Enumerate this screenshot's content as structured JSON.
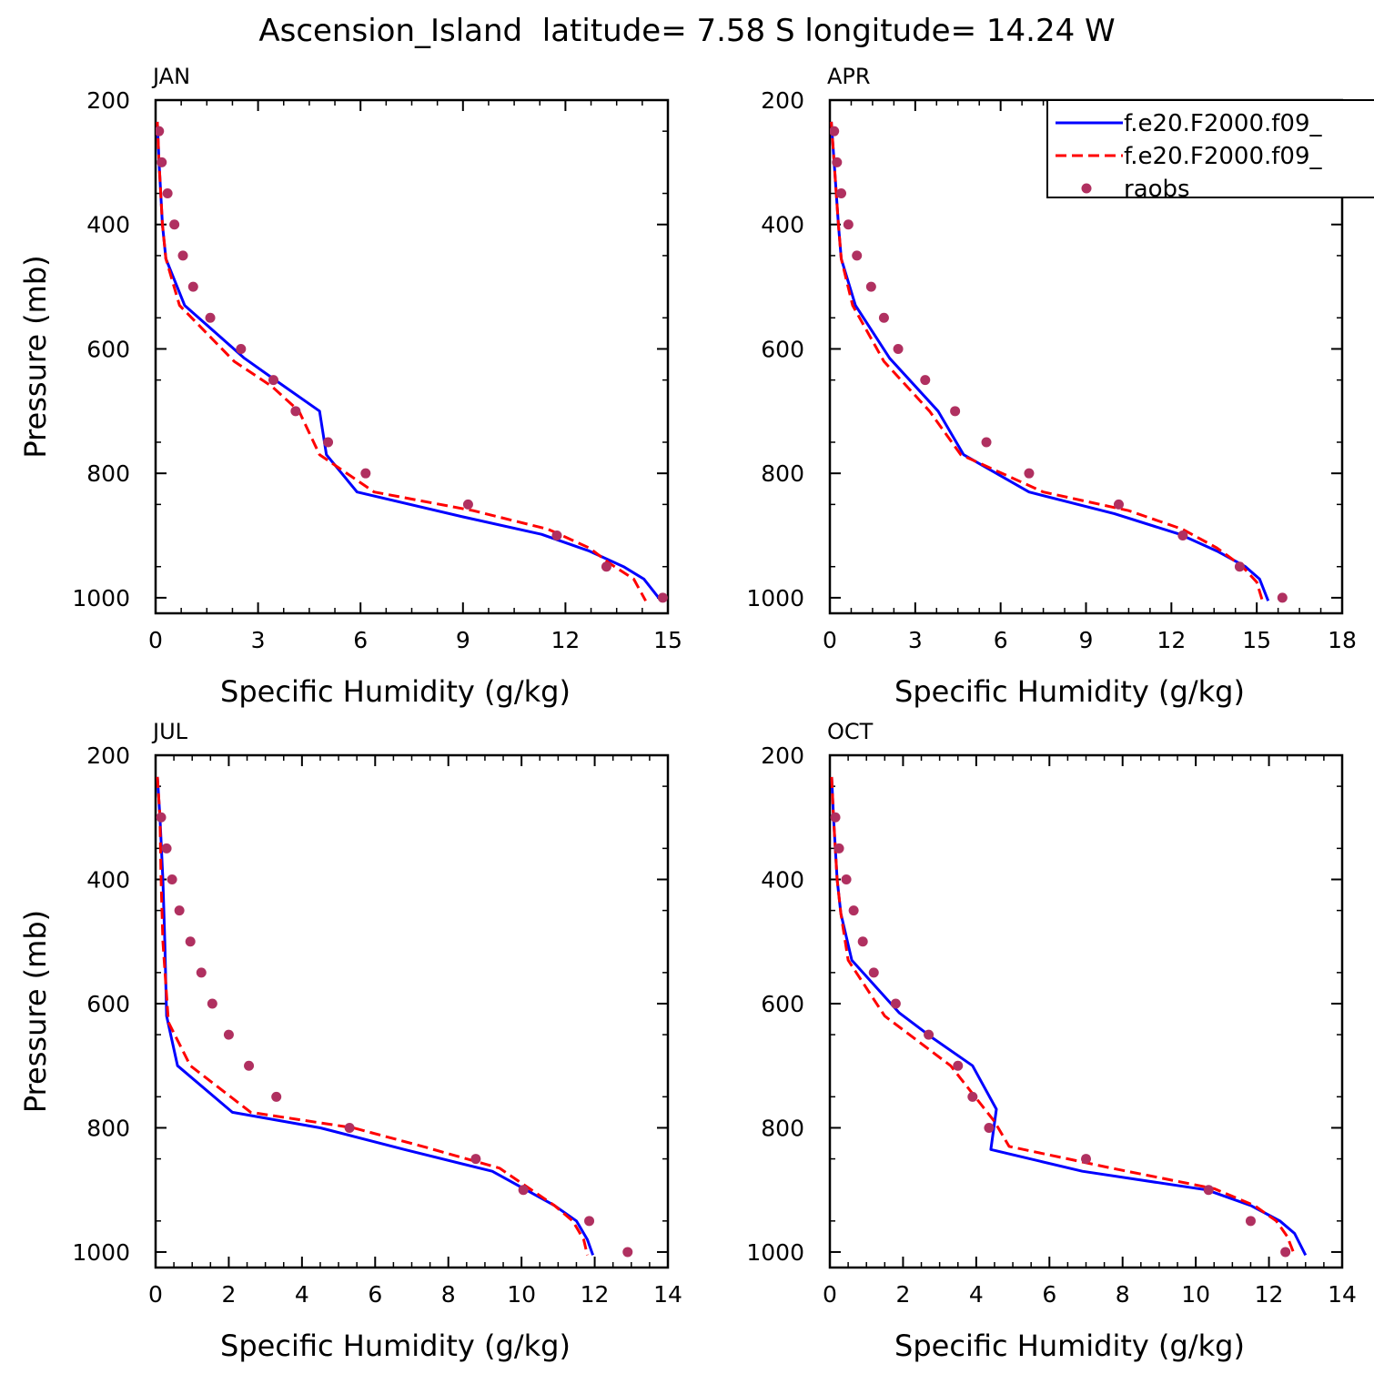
{
  "title": "Ascension_Island  latitude= 7.58 S longitude= 14.24 W",
  "colors": {
    "model1": "#0000ff",
    "model2": "#ff0000",
    "raobs": "#b03060"
  },
  "chart_data": [
    {
      "type": "line",
      "panel": "JAN",
      "xlabel": "Specific Humidity (g/kg)",
      "ylabel": "Pressure (mb)",
      "xlim": [
        0,
        15
      ],
      "xticks": [
        0,
        3,
        6,
        9,
        12,
        15
      ],
      "ylim": [
        200,
        1025
      ],
      "yticks": [
        200,
        400,
        600,
        800,
        1000
      ],
      "y_inverted": true,
      "series": [
        {
          "name": "f.e20.F2000.f09_",
          "style": "solid",
          "color": "#0000ff",
          "points": [
            [
              0.05,
              235
            ],
            [
              0.1,
              300
            ],
            [
              0.2,
              400
            ],
            [
              0.3,
              455
            ],
            [
              0.85,
              530
            ],
            [
              2.6,
              615
            ],
            [
              3.5,
              650
            ],
            [
              4.8,
              700
            ],
            [
              5.0,
              770
            ],
            [
              5.9,
              830
            ],
            [
              9.0,
              870
            ],
            [
              11.3,
              898
            ],
            [
              12.7,
              925
            ],
            [
              13.7,
              950
            ],
            [
              14.3,
              970
            ],
            [
              14.8,
              1005
            ]
          ]
        },
        {
          "name": "f.e20.F2000.f09_",
          "style": "dashed",
          "color": "#ff0000",
          "points": [
            [
              0.05,
              235
            ],
            [
              0.1,
              300
            ],
            [
              0.2,
              400
            ],
            [
              0.3,
              455
            ],
            [
              0.7,
              530
            ],
            [
              2.3,
              620
            ],
            [
              3.4,
              660
            ],
            [
              4.2,
              700
            ],
            [
              4.8,
              770
            ],
            [
              6.4,
              830
            ],
            [
              9.3,
              860
            ],
            [
              11.5,
              890
            ],
            [
              12.7,
              920
            ],
            [
              13.3,
              945
            ],
            [
              14.0,
              970
            ],
            [
              14.35,
              1005
            ]
          ]
        },
        {
          "name": "raobs",
          "style": "markers",
          "color": "#b03060",
          "points": [
            [
              0.1,
              250
            ],
            [
              0.18,
              300
            ],
            [
              0.35,
              350
            ],
            [
              0.55,
              400
            ],
            [
              0.8,
              450
            ],
            [
              1.1,
              500
            ],
            [
              1.6,
              550
            ],
            [
              2.5,
              600
            ],
            [
              3.45,
              650
            ],
            [
              4.1,
              700
            ],
            [
              5.05,
              750
            ],
            [
              6.15,
              800
            ],
            [
              9.15,
              850
            ],
            [
              11.75,
              900
            ],
            [
              13.2,
              950
            ],
            [
              14.85,
              1000
            ]
          ]
        }
      ]
    },
    {
      "type": "line",
      "panel": "APR",
      "xlabel": "Specific Humidity (g/kg)",
      "ylabel": "",
      "xlim": [
        0,
        18
      ],
      "xticks": [
        0,
        3,
        6,
        9,
        12,
        15,
        18
      ],
      "ylim": [
        200,
        1025
      ],
      "yticks": [
        200,
        400,
        600,
        800,
        1000
      ],
      "y_inverted": true,
      "series": [
        {
          "name": "f.e20.F2000.f09_",
          "style": "solid",
          "color": "#0000ff",
          "points": [
            [
              0.05,
              235
            ],
            [
              0.15,
              300
            ],
            [
              0.3,
              400
            ],
            [
              0.4,
              455
            ],
            [
              0.9,
              530
            ],
            [
              2.1,
              615
            ],
            [
              3.8,
              700
            ],
            [
              4.7,
              770
            ],
            [
              7.0,
              830
            ],
            [
              10.0,
              865
            ],
            [
              12.3,
              898
            ],
            [
              13.6,
              925
            ],
            [
              14.6,
              950
            ],
            [
              15.1,
              970
            ],
            [
              15.4,
              1005
            ]
          ]
        },
        {
          "name": "f.e20.F2000.f09_",
          "style": "dashed",
          "color": "#ff0000",
          "points": [
            [
              0.05,
              235
            ],
            [
              0.15,
              300
            ],
            [
              0.3,
              400
            ],
            [
              0.4,
              455
            ],
            [
              0.8,
              530
            ],
            [
              1.9,
              620
            ],
            [
              3.5,
              700
            ],
            [
              4.6,
              770
            ],
            [
              7.5,
              830
            ],
            [
              10.5,
              860
            ],
            [
              12.4,
              890
            ],
            [
              13.6,
              920
            ],
            [
              14.5,
              950
            ],
            [
              15.0,
              975
            ],
            [
              15.2,
              1005
            ]
          ]
        },
        {
          "name": "raobs",
          "style": "markers",
          "color": "#b03060",
          "points": [
            [
              0.15,
              250
            ],
            [
              0.25,
              300
            ],
            [
              0.4,
              350
            ],
            [
              0.65,
              400
            ],
            [
              0.95,
              450
            ],
            [
              1.45,
              500
            ],
            [
              1.9,
              550
            ],
            [
              2.4,
              600
            ],
            [
              3.35,
              650
            ],
            [
              4.4,
              700
            ],
            [
              5.5,
              750
            ],
            [
              7.0,
              800
            ],
            [
              10.15,
              850
            ],
            [
              12.4,
              900
            ],
            [
              14.4,
              950
            ],
            [
              15.9,
              1000
            ]
          ]
        }
      ]
    },
    {
      "type": "line",
      "panel": "JUL",
      "xlabel": "Specific Humidity (g/kg)",
      "ylabel": "Pressure (mb)",
      "xlim": [
        0,
        14
      ],
      "xticks": [
        0,
        2,
        4,
        6,
        8,
        10,
        12,
        14
      ],
      "ylim": [
        200,
        1025
      ],
      "yticks": [
        200,
        400,
        600,
        800,
        1000
      ],
      "y_inverted": true,
      "series": [
        {
          "name": "f.e20.F2000.f09_",
          "style": "solid",
          "color": "#0000ff",
          "points": [
            [
              0.05,
              235
            ],
            [
              0.12,
              300
            ],
            [
              0.2,
              400
            ],
            [
              0.25,
              500
            ],
            [
              0.3,
              620
            ],
            [
              0.6,
              700
            ],
            [
              2.1,
              775
            ],
            [
              4.5,
              800
            ],
            [
              6.8,
              835
            ],
            [
              9.2,
              870
            ],
            [
              10.9,
              925
            ],
            [
              11.5,
              950
            ],
            [
              11.8,
              980
            ],
            [
              11.95,
              1005
            ]
          ]
        },
        {
          "name": "f.e20.F2000.f09_",
          "style": "dashed",
          "color": "#ff0000",
          "points": [
            [
              0.05,
              235
            ],
            [
              0.12,
              300
            ],
            [
              0.15,
              400
            ],
            [
              0.2,
              500
            ],
            [
              0.35,
              630
            ],
            [
              0.95,
              700
            ],
            [
              2.6,
              775
            ],
            [
              5.4,
              800
            ],
            [
              7.3,
              830
            ],
            [
              9.4,
              865
            ],
            [
              10.9,
              925
            ],
            [
              11.4,
              950
            ],
            [
              11.7,
              980
            ],
            [
              11.8,
              1005
            ]
          ]
        },
        {
          "name": "raobs",
          "style": "markers",
          "color": "#b03060",
          "points": [
            [
              0.15,
              300
            ],
            [
              0.3,
              350
            ],
            [
              0.45,
              400
            ],
            [
              0.65,
              450
            ],
            [
              0.95,
              500
            ],
            [
              1.25,
              550
            ],
            [
              1.55,
              600
            ],
            [
              2.0,
              650
            ],
            [
              2.55,
              700
            ],
            [
              3.3,
              750
            ],
            [
              5.3,
              800
            ],
            [
              8.75,
              850
            ],
            [
              10.05,
              900
            ],
            [
              11.85,
              950
            ],
            [
              12.9,
              1000
            ]
          ]
        }
      ]
    },
    {
      "type": "line",
      "panel": "OCT",
      "xlabel": "Specific Humidity (g/kg)",
      "ylabel": "",
      "xlim": [
        0,
        14
      ],
      "xticks": [
        0,
        2,
        4,
        6,
        8,
        10,
        12,
        14
      ],
      "ylim": [
        200,
        1025
      ],
      "yticks": [
        200,
        400,
        600,
        800,
        1000
      ],
      "y_inverted": true,
      "series": [
        {
          "name": "f.e20.F2000.f09_",
          "style": "solid",
          "color": "#0000ff",
          "points": [
            [
              0.05,
              235
            ],
            [
              0.1,
              300
            ],
            [
              0.2,
              400
            ],
            [
              0.3,
              455
            ],
            [
              0.6,
              530
            ],
            [
              1.9,
              615
            ],
            [
              2.8,
              655
            ],
            [
              3.9,
              700
            ],
            [
              4.55,
              770
            ],
            [
              4.4,
              835
            ],
            [
              6.9,
              870
            ],
            [
              10.3,
              900
            ],
            [
              11.5,
              925
            ],
            [
              12.3,
              950
            ],
            [
              12.7,
              970
            ],
            [
              13.0,
              1005
            ]
          ]
        },
        {
          "name": "f.e20.F2000.f09_",
          "style": "dashed",
          "color": "#ff0000",
          "points": [
            [
              0.05,
              235
            ],
            [
              0.1,
              300
            ],
            [
              0.2,
              400
            ],
            [
              0.3,
              455
            ],
            [
              0.5,
              530
            ],
            [
              1.5,
              620
            ],
            [
              3.3,
              700
            ],
            [
              4.5,
              790
            ],
            [
              4.9,
              830
            ],
            [
              7.7,
              865
            ],
            [
              10.5,
              898
            ],
            [
              11.6,
              925
            ],
            [
              12.2,
              950
            ],
            [
              12.5,
              975
            ],
            [
              12.7,
              1005
            ]
          ]
        },
        {
          "name": "raobs",
          "style": "markers",
          "color": "#b03060",
          "points": [
            [
              0.15,
              300
            ],
            [
              0.25,
              350
            ],
            [
              0.45,
              400
            ],
            [
              0.65,
              450
            ],
            [
              0.9,
              500
            ],
            [
              1.2,
              550
            ],
            [
              1.8,
              600
            ],
            [
              2.7,
              650
            ],
            [
              3.5,
              700
            ],
            [
              3.9,
              750
            ],
            [
              4.35,
              800
            ],
            [
              7.0,
              850
            ],
            [
              10.35,
              900
            ],
            [
              11.5,
              950
            ],
            [
              12.45,
              1000
            ]
          ]
        }
      ]
    }
  ],
  "legend": {
    "entries": [
      {
        "label": "f.e20.F2000.f09_",
        "style": "solid",
        "color": "#0000ff"
      },
      {
        "label": "f.e20.F2000.f09_",
        "style": "dashed",
        "color": "#ff0000"
      },
      {
        "label": "raobs",
        "style": "markers",
        "color": "#b03060"
      }
    ]
  }
}
